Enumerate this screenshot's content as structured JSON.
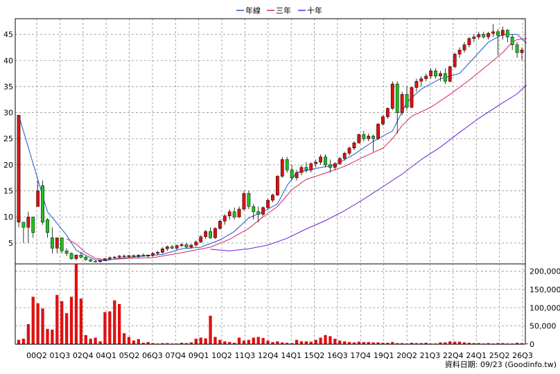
{
  "chart_data": [
    {
      "type": "candlestick",
      "legend": {
        "placement": "top-center",
        "items": [
          {
            "label": "年線",
            "color": "#1f56c8"
          },
          {
            "label": "三年",
            "color": "#d0245c"
          },
          {
            "label": "十年",
            "color": "#6a1fd8"
          }
        ]
      },
      "x_tick_labels": [
        "00Q2",
        "01Q3",
        "02Q4",
        "04Q1",
        "05Q2",
        "06Q3",
        "07Q4",
        "09Q1",
        "10Q2",
        "11Q3",
        "12Q4",
        "14Q1",
        "15Q2",
        "16Q3",
        "17Q4",
        "19Q1",
        "20Q2",
        "21Q3",
        "22Q4",
        "24Q1",
        "25Q2",
        "26Q3"
      ],
      "ylim": [
        1,
        48
      ],
      "y_ticks": [
        5,
        10,
        15,
        20,
        25,
        30,
        35,
        40,
        45
      ],
      "grid": true,
      "colors": {
        "up": "#e01010",
        "down": "#20c020",
        "outline": "#000000",
        "grid": "#909090"
      },
      "candles_ohlc": [
        [
          9,
          29.5,
          8,
          29.5
        ],
        [
          9,
          9,
          5,
          8
        ],
        [
          8,
          11,
          5,
          10
        ],
        [
          10,
          10,
          6,
          7
        ],
        [
          12,
          17,
          12,
          15
        ],
        [
          16,
          17,
          8.5,
          9
        ],
        [
          9.5,
          9.8,
          6,
          7
        ],
        [
          6,
          8,
          3,
          4
        ],
        [
          4,
          6,
          3,
          6
        ],
        [
          6,
          6,
          3,
          3.5
        ],
        [
          3.5,
          4,
          2.5,
          3
        ],
        [
          3,
          3.2,
          1.8,
          2
        ],
        [
          2,
          2.8,
          1.7,
          2.7
        ],
        [
          2.7,
          3.3,
          2,
          2.3
        ],
        [
          2.3,
          2.5,
          1.6,
          1.8
        ],
        [
          1.8,
          2,
          1.4,
          1.5
        ],
        [
          1.5,
          1.7,
          1.3,
          1.4
        ],
        [
          1.4,
          1.8,
          1.3,
          1.7
        ],
        [
          1.7,
          2.1,
          1.6,
          2
        ],
        [
          2,
          2.4,
          1.8,
          2.2
        ],
        [
          2.2,
          2.5,
          2,
          2.3
        ],
        [
          2.3,
          2.7,
          2.1,
          2.5
        ],
        [
          2.5,
          2.8,
          2.2,
          2.4
        ],
        [
          2.4,
          2.7,
          2.2,
          2.6
        ],
        [
          2.6,
          2.8,
          2.3,
          2.4
        ],
        [
          2.4,
          2.8,
          2.2,
          2.7
        ],
        [
          2.7,
          3,
          2.4,
          2.5
        ],
        [
          2.5,
          2.8,
          2.2,
          2.7
        ],
        [
          2.7,
          3.2,
          2.4,
          3
        ],
        [
          3,
          3.5,
          2.7,
          3.2
        ],
        [
          3.2,
          4.2,
          3,
          3.9
        ],
        [
          3.9,
          4.5,
          3.5,
          4.3
        ],
        [
          4.3,
          4.6,
          3.8,
          4
        ],
        [
          4,
          4.7,
          3.6,
          4.5
        ],
        [
          4.5,
          5,
          4.2,
          4.7
        ],
        [
          4.7,
          5,
          4,
          4.2
        ],
        [
          4.2,
          4.8,
          3.9,
          4.6
        ],
        [
          4.6,
          5.5,
          4.3,
          5.2
        ],
        [
          5.2,
          6.5,
          5,
          6.2
        ],
        [
          6.2,
          7.5,
          5.8,
          7.2
        ],
        [
          7.2,
          8,
          5.8,
          6
        ],
        [
          6,
          8,
          5.8,
          7.8
        ],
        [
          7.8,
          9.5,
          7.5,
          9.2
        ],
        [
          9.2,
          10.5,
          8.5,
          10.2
        ],
        [
          10.2,
          11.5,
          9.5,
          11
        ],
        [
          11,
          11.8,
          9.5,
          10
        ],
        [
          10,
          12,
          9.8,
          11.5
        ],
        [
          11.5,
          15,
          11.2,
          14.5
        ],
        [
          14.5,
          15,
          11.5,
          12
        ],
        [
          12,
          12.5,
          9.5,
          11
        ],
        [
          11,
          12,
          9,
          10.5
        ],
        [
          10.5,
          12,
          10.2,
          11.8
        ],
        [
          11.8,
          13.5,
          11.5,
          13.2
        ],
        [
          13.2,
          14.5,
          12.8,
          14.2
        ],
        [
          14.2,
          18,
          14,
          17.8
        ],
        [
          17.8,
          21.5,
          17.5,
          21
        ],
        [
          21,
          21.5,
          18.5,
          19
        ],
        [
          19,
          20,
          17,
          17.5
        ],
        [
          17.5,
          19,
          17,
          18.5
        ],
        [
          18.5,
          20,
          18,
          19.5
        ],
        [
          19.5,
          20.5,
          18.5,
          19
        ],
        [
          19,
          20.5,
          18.5,
          20.2
        ],
        [
          20.2,
          21,
          19.5,
          20.5
        ],
        [
          20.5,
          22,
          20,
          21.5
        ],
        [
          21.5,
          22,
          19.5,
          20
        ],
        [
          20,
          21,
          18.5,
          19.5
        ],
        [
          19.5,
          20.5,
          19,
          20.2
        ],
        [
          20.2,
          21.5,
          20,
          21.2
        ],
        [
          21.2,
          22.5,
          20.8,
          22.2
        ],
        [
          22.2,
          23.5,
          21.8,
          23.2
        ],
        [
          23.2,
          24.5,
          22.8,
          24.2
        ],
        [
          24.2,
          26,
          24,
          25.8
        ],
        [
          25.8,
          26.5,
          24.5,
          25
        ],
        [
          25,
          26,
          24.5,
          25.5
        ],
        [
          25.5,
          25.8,
          22.5,
          25
        ],
        [
          25,
          28,
          24.8,
          27.8
        ],
        [
          27.8,
          29.5,
          27.5,
          29.2
        ],
        [
          29.2,
          31,
          28.8,
          30.8
        ],
        [
          30.8,
          36,
          30.5,
          35.5
        ],
        [
          35.5,
          36,
          26,
          30
        ],
        [
          30,
          34,
          29.5,
          33.5
        ],
        [
          33.5,
          35,
          30.5,
          31
        ],
        [
          31,
          35,
          30.8,
          34.8
        ],
        [
          34.8,
          36.5,
          34,
          36
        ],
        [
          36,
          37,
          35,
          36.5
        ],
        [
          36.5,
          37.5,
          36,
          37
        ],
        [
          37,
          38.5,
          36.5,
          38
        ],
        [
          38,
          38.5,
          36.5,
          37
        ],
        [
          37,
          38,
          36,
          37.5
        ],
        [
          37.5,
          38.5,
          35.5,
          36
        ],
        [
          36,
          39,
          35.8,
          38.8
        ],
        [
          38.8,
          41.5,
          38.5,
          41.2
        ],
        [
          41.2,
          42.5,
          40.5,
          42
        ],
        [
          42,
          43.5,
          41.5,
          43
        ],
        [
          43,
          44.5,
          42.5,
          44.2
        ],
        [
          44.2,
          45,
          43.5,
          44.5
        ],
        [
          44.5,
          45.5,
          44,
          45
        ],
        [
          45,
          45.5,
          44.2,
          44.5
        ],
        [
          44.5,
          45.5,
          44,
          45.2
        ],
        [
          45.2,
          47,
          44.5,
          45.5
        ],
        [
          45.5,
          46,
          41,
          44.8
        ],
        [
          44.8,
          46.5,
          44,
          45.8
        ],
        [
          45.8,
          46,
          43.5,
          44.5
        ],
        [
          44.5,
          45,
          42,
          43
        ],
        [
          43,
          43.5,
          40.5,
          41.5
        ],
        [
          41.5,
          42.5,
          40,
          42
        ]
      ],
      "moving_averages": {
        "年線": [
          [
            0,
            29.5
          ],
          [
            6,
            11
          ],
          [
            8,
            8.8
          ],
          [
            10,
            6.5
          ],
          [
            12,
            3.6
          ],
          [
            14,
            2.6
          ],
          [
            16,
            1.8
          ],
          [
            18,
            1.6
          ],
          [
            21,
            2.1
          ],
          [
            25,
            2.4
          ],
          [
            30,
            2.8
          ],
          [
            34,
            3.9
          ],
          [
            38,
            4.2
          ],
          [
            42,
            5.6
          ],
          [
            45,
            7.2
          ],
          [
            48,
            9.8
          ],
          [
            51,
            11
          ],
          [
            54,
            12.5
          ],
          [
            56,
            16
          ],
          [
            58,
            18.5
          ],
          [
            62,
            19.3
          ],
          [
            66,
            20
          ],
          [
            70,
            22
          ],
          [
            74,
            24.5
          ],
          [
            78,
            26.5
          ],
          [
            81,
            32
          ],
          [
            84,
            34.5
          ],
          [
            88,
            36.5
          ],
          [
            92,
            37.5
          ],
          [
            95,
            40.5
          ],
          [
            98,
            43.5
          ],
          [
            101,
            45
          ],
          [
            104,
            45
          ],
          [
            106,
            43.3
          ]
        ],
        "三年": [
          [
            10,
            5.8
          ],
          [
            12,
            4.8
          ],
          [
            14,
            3.1
          ],
          [
            16,
            2.1
          ],
          [
            18,
            1.8
          ],
          [
            20,
            1.9
          ],
          [
            24,
            2.1
          ],
          [
            28,
            2.2
          ],
          [
            32,
            2.8
          ],
          [
            36,
            3.5
          ],
          [
            40,
            4.2
          ],
          [
            44,
            5.7
          ],
          [
            48,
            7.8
          ],
          [
            51,
            10
          ],
          [
            54,
            12
          ],
          [
            57,
            15.2
          ],
          [
            60,
            17.2
          ],
          [
            64,
            18.4
          ],
          [
            68,
            19.7
          ],
          [
            72,
            21.5
          ],
          [
            76,
            23.2
          ],
          [
            78,
            25
          ],
          [
            80,
            27.5
          ],
          [
            82,
            29.3
          ],
          [
            86,
            31
          ],
          [
            90,
            33.5
          ],
          [
            94,
            36.2
          ],
          [
            98,
            39.2
          ],
          [
            101,
            41.5
          ],
          [
            103,
            43.5
          ],
          [
            104,
            44
          ],
          [
            106,
            44.2
          ]
        ],
        "十年": [
          [
            40,
            3.8
          ],
          [
            44,
            3.5
          ],
          [
            48,
            3.9
          ],
          [
            52,
            4.6
          ],
          [
            56,
            5.9
          ],
          [
            60,
            7.7
          ],
          [
            64,
            9.3
          ],
          [
            68,
            11.2
          ],
          [
            72,
            13.4
          ],
          [
            76,
            15.8
          ],
          [
            80,
            18.2
          ],
          [
            84,
            21
          ],
          [
            88,
            23.4
          ],
          [
            92,
            26.2
          ],
          [
            96,
            28.9
          ],
          [
            100,
            31.3
          ],
          [
            104,
            33.6
          ],
          [
            106,
            35.3
          ]
        ]
      },
      "line_colors": {
        "年線": "#1f56c8",
        "三年": "#d0245c",
        "十年": "#6a1fd8"
      }
    },
    {
      "type": "bar",
      "name": "volume",
      "ylim": [
        0,
        220000
      ],
      "y_tick_labels": [
        "200,000",
        "150,000",
        "100,000",
        "50,000",
        "0"
      ],
      "y_ticks": [
        200000,
        150000,
        100000,
        50000,
        0
      ],
      "bar_color": "#e01010",
      "values": [
        12000,
        15000,
        55000,
        130000,
        112000,
        98000,
        42000,
        40000,
        135000,
        118000,
        85000,
        130000,
        222000,
        125000,
        25000,
        15000,
        18000,
        8000,
        88000,
        90000,
        120000,
        110000,
        30000,
        20000,
        10000,
        14000,
        4000,
        6000,
        3000,
        2000,
        3000,
        3000,
        2000,
        2000,
        4000,
        3000,
        5000,
        15000,
        18000,
        16000,
        78000,
        20000,
        12000,
        8000,
        6000,
        4000,
        18000,
        10000,
        12000,
        18000,
        20000,
        17000,
        10000,
        6000,
        8000,
        5000,
        4000,
        3000,
        12000,
        8000,
        8000,
        7000,
        12000,
        18000,
        25000,
        22000,
        15000,
        10000,
        8000,
        6000,
        5000,
        7000,
        6000,
        6000,
        5000,
        5000,
        4000,
        4000,
        6000,
        3000,
        3000,
        2000,
        4000,
        3000,
        3000,
        4000,
        2000,
        2000,
        5000,
        5000,
        8000,
        7000,
        7000,
        5000,
        4000,
        3000,
        3000,
        2000,
        3000,
        2000,
        3000,
        3000,
        2000,
        2000,
        4000,
        3000,
        2000
      ]
    }
  ],
  "source": "資料日期: 09/23 (Goodinfo.tw)"
}
